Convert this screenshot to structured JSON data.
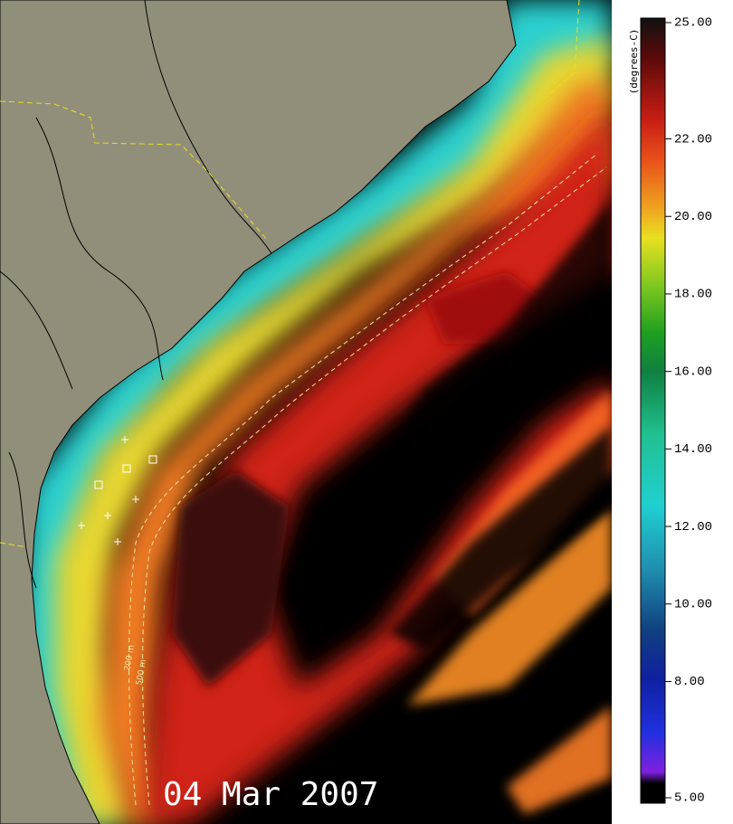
{
  "date": "04 Mar 2007",
  "contours": [
    "200 m",
    "500 m"
  ],
  "colorbar": {
    "units": "(degrees-C)",
    "lim": [
      5,
      25
    ],
    "ticks": [
      {
        "value": 25,
        "label": "25.00"
      },
      {
        "value": 22,
        "label": "22.00"
      },
      {
        "value": 20,
        "label": "20.00"
      },
      {
        "value": 18,
        "label": "18.00"
      },
      {
        "value": 16,
        "label": "16.00"
      },
      {
        "value": 14,
        "label": "14.00"
      },
      {
        "value": 12,
        "label": "12.00"
      },
      {
        "value": 10,
        "label": "10.00"
      },
      {
        "value": 8,
        "label": "8.00"
      },
      {
        "value": 5,
        "label": "5.00"
      }
    ]
  }
}
